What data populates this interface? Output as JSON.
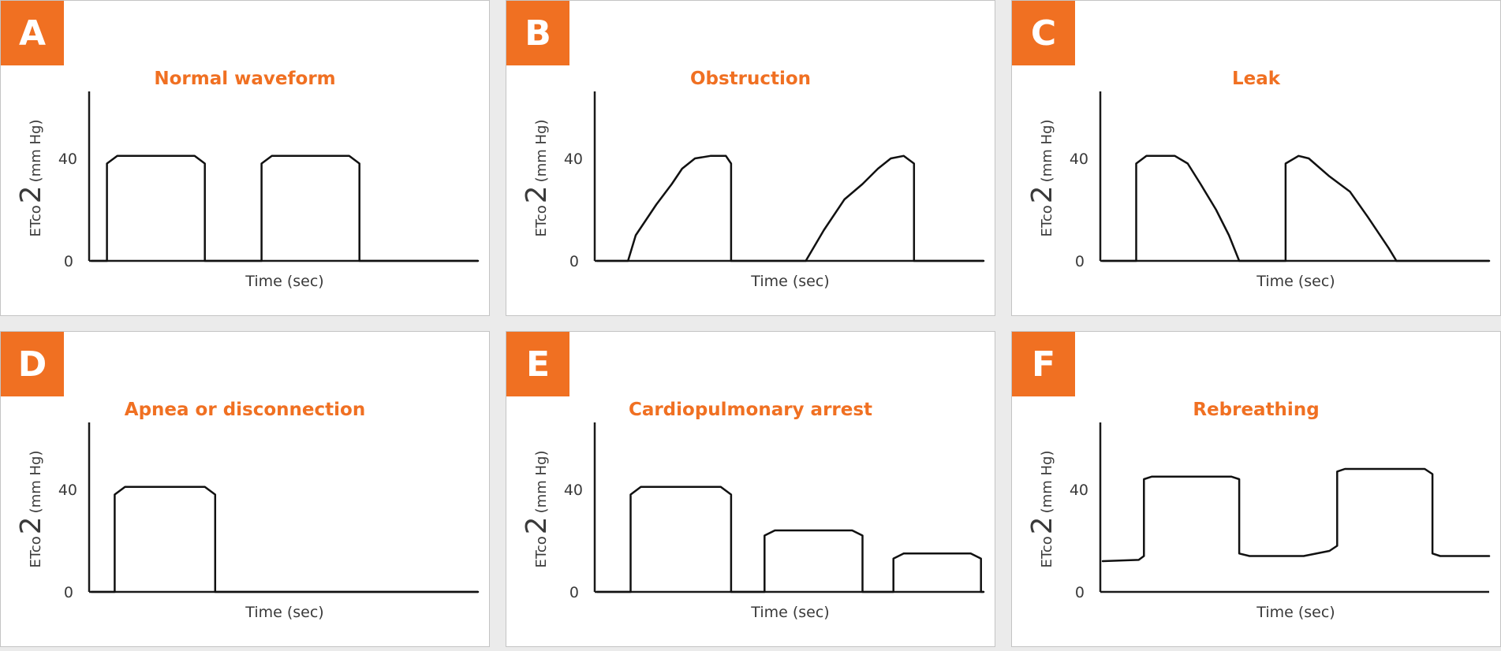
{
  "accent_color": "#f07022",
  "axis": {
    "xlabel": "Time (sec)",
    "ylabel_main": "ETco",
    "ylabel_sub": "2",
    "ylabel_unit": "(mm Hg)",
    "ticks": [
      "0",
      "40"
    ]
  },
  "panels": [
    {
      "letter": "A",
      "title": "Normal waveform",
      "waveform": [
        [
          0,
          0
        ],
        [
          0.6,
          0
        ],
        [
          0.6,
          38
        ],
        [
          1,
          41
        ],
        [
          4,
          41
        ],
        [
          4.4,
          38
        ],
        [
          4.4,
          0
        ],
        [
          6.6,
          0
        ],
        [
          6.6,
          38
        ],
        [
          7,
          41
        ],
        [
          10,
          41
        ],
        [
          10.4,
          38
        ],
        [
          10.4,
          0
        ],
        [
          15,
          0
        ]
      ]
    },
    {
      "letter": "B",
      "title": "Obstruction",
      "waveform": [
        [
          0,
          0
        ],
        [
          1.2,
          0
        ],
        [
          1.5,
          10
        ],
        [
          2.3,
          22
        ],
        [
          2.9,
          30
        ],
        [
          3.3,
          36
        ],
        [
          3.8,
          40
        ],
        [
          4.4,
          41
        ],
        [
          5,
          41
        ],
        [
          5.2,
          38
        ],
        [
          5.2,
          0
        ],
        [
          8.1,
          0
        ],
        [
          8.8,
          12
        ],
        [
          9.6,
          24
        ],
        [
          10.3,
          30
        ],
        [
          10.9,
          36
        ],
        [
          11.4,
          40
        ],
        [
          11.9,
          41
        ],
        [
          12.3,
          38
        ],
        [
          12.3,
          0
        ],
        [
          15,
          0
        ]
      ]
    },
    {
      "letter": "C",
      "title": "Leak",
      "waveform": [
        [
          0,
          0
        ],
        [
          1.3,
          0
        ],
        [
          1.3,
          38
        ],
        [
          1.7,
          41
        ],
        [
          2.8,
          41
        ],
        [
          3.3,
          38
        ],
        [
          3.8,
          30
        ],
        [
          4.4,
          20
        ],
        [
          4.9,
          10
        ],
        [
          5.3,
          0
        ],
        [
          7.1,
          0
        ],
        [
          7.1,
          38
        ],
        [
          7.6,
          41
        ],
        [
          8,
          40
        ],
        [
          8.8,
          33
        ],
        [
          9.6,
          27
        ],
        [
          10.3,
          17
        ],
        [
          11.1,
          5
        ],
        [
          11.4,
          0
        ],
        [
          15,
          0
        ]
      ]
    },
    {
      "letter": "D",
      "title": "Apnea or disconnection",
      "waveform": [
        [
          0,
          0
        ],
        [
          0.9,
          0
        ],
        [
          0.9,
          38
        ],
        [
          1.3,
          41
        ],
        [
          4.4,
          41
        ],
        [
          4.8,
          38
        ],
        [
          4.8,
          0
        ],
        [
          15,
          0
        ]
      ]
    },
    {
      "letter": "E",
      "title": "Cardiopulmonary arrest",
      "waveform": [
        [
          0,
          0
        ],
        [
          1.3,
          0
        ],
        [
          1.3,
          38
        ],
        [
          1.7,
          41
        ],
        [
          4.8,
          41
        ],
        [
          5.2,
          38
        ],
        [
          5.2,
          0
        ],
        [
          6.5,
          0
        ],
        [
          6.5,
          22
        ],
        [
          6.9,
          24
        ],
        [
          9.9,
          24
        ],
        [
          10.3,
          22
        ],
        [
          10.3,
          0
        ],
        [
          11.5,
          0
        ],
        [
          11.5,
          13
        ],
        [
          11.9,
          15
        ],
        [
          14.5,
          15
        ],
        [
          14.9,
          13
        ],
        [
          14.9,
          0
        ],
        [
          15,
          0
        ]
      ]
    },
    {
      "letter": "F",
      "title": "Rebreathing",
      "waveform": [
        [
          0,
          12
        ],
        [
          1.4,
          12.5
        ],
        [
          1.6,
          14
        ],
        [
          1.6,
          44
        ],
        [
          1.9,
          45
        ],
        [
          5,
          45
        ],
        [
          5.3,
          44
        ],
        [
          5.3,
          15
        ],
        [
          5.7,
          14
        ],
        [
          7.8,
          14
        ],
        [
          8.8,
          16
        ],
        [
          9.1,
          18
        ],
        [
          9.1,
          47
        ],
        [
          9.4,
          48
        ],
        [
          12.5,
          48
        ],
        [
          12.8,
          46
        ],
        [
          12.8,
          15
        ],
        [
          13.1,
          14
        ],
        [
          15,
          14
        ]
      ]
    }
  ]
}
